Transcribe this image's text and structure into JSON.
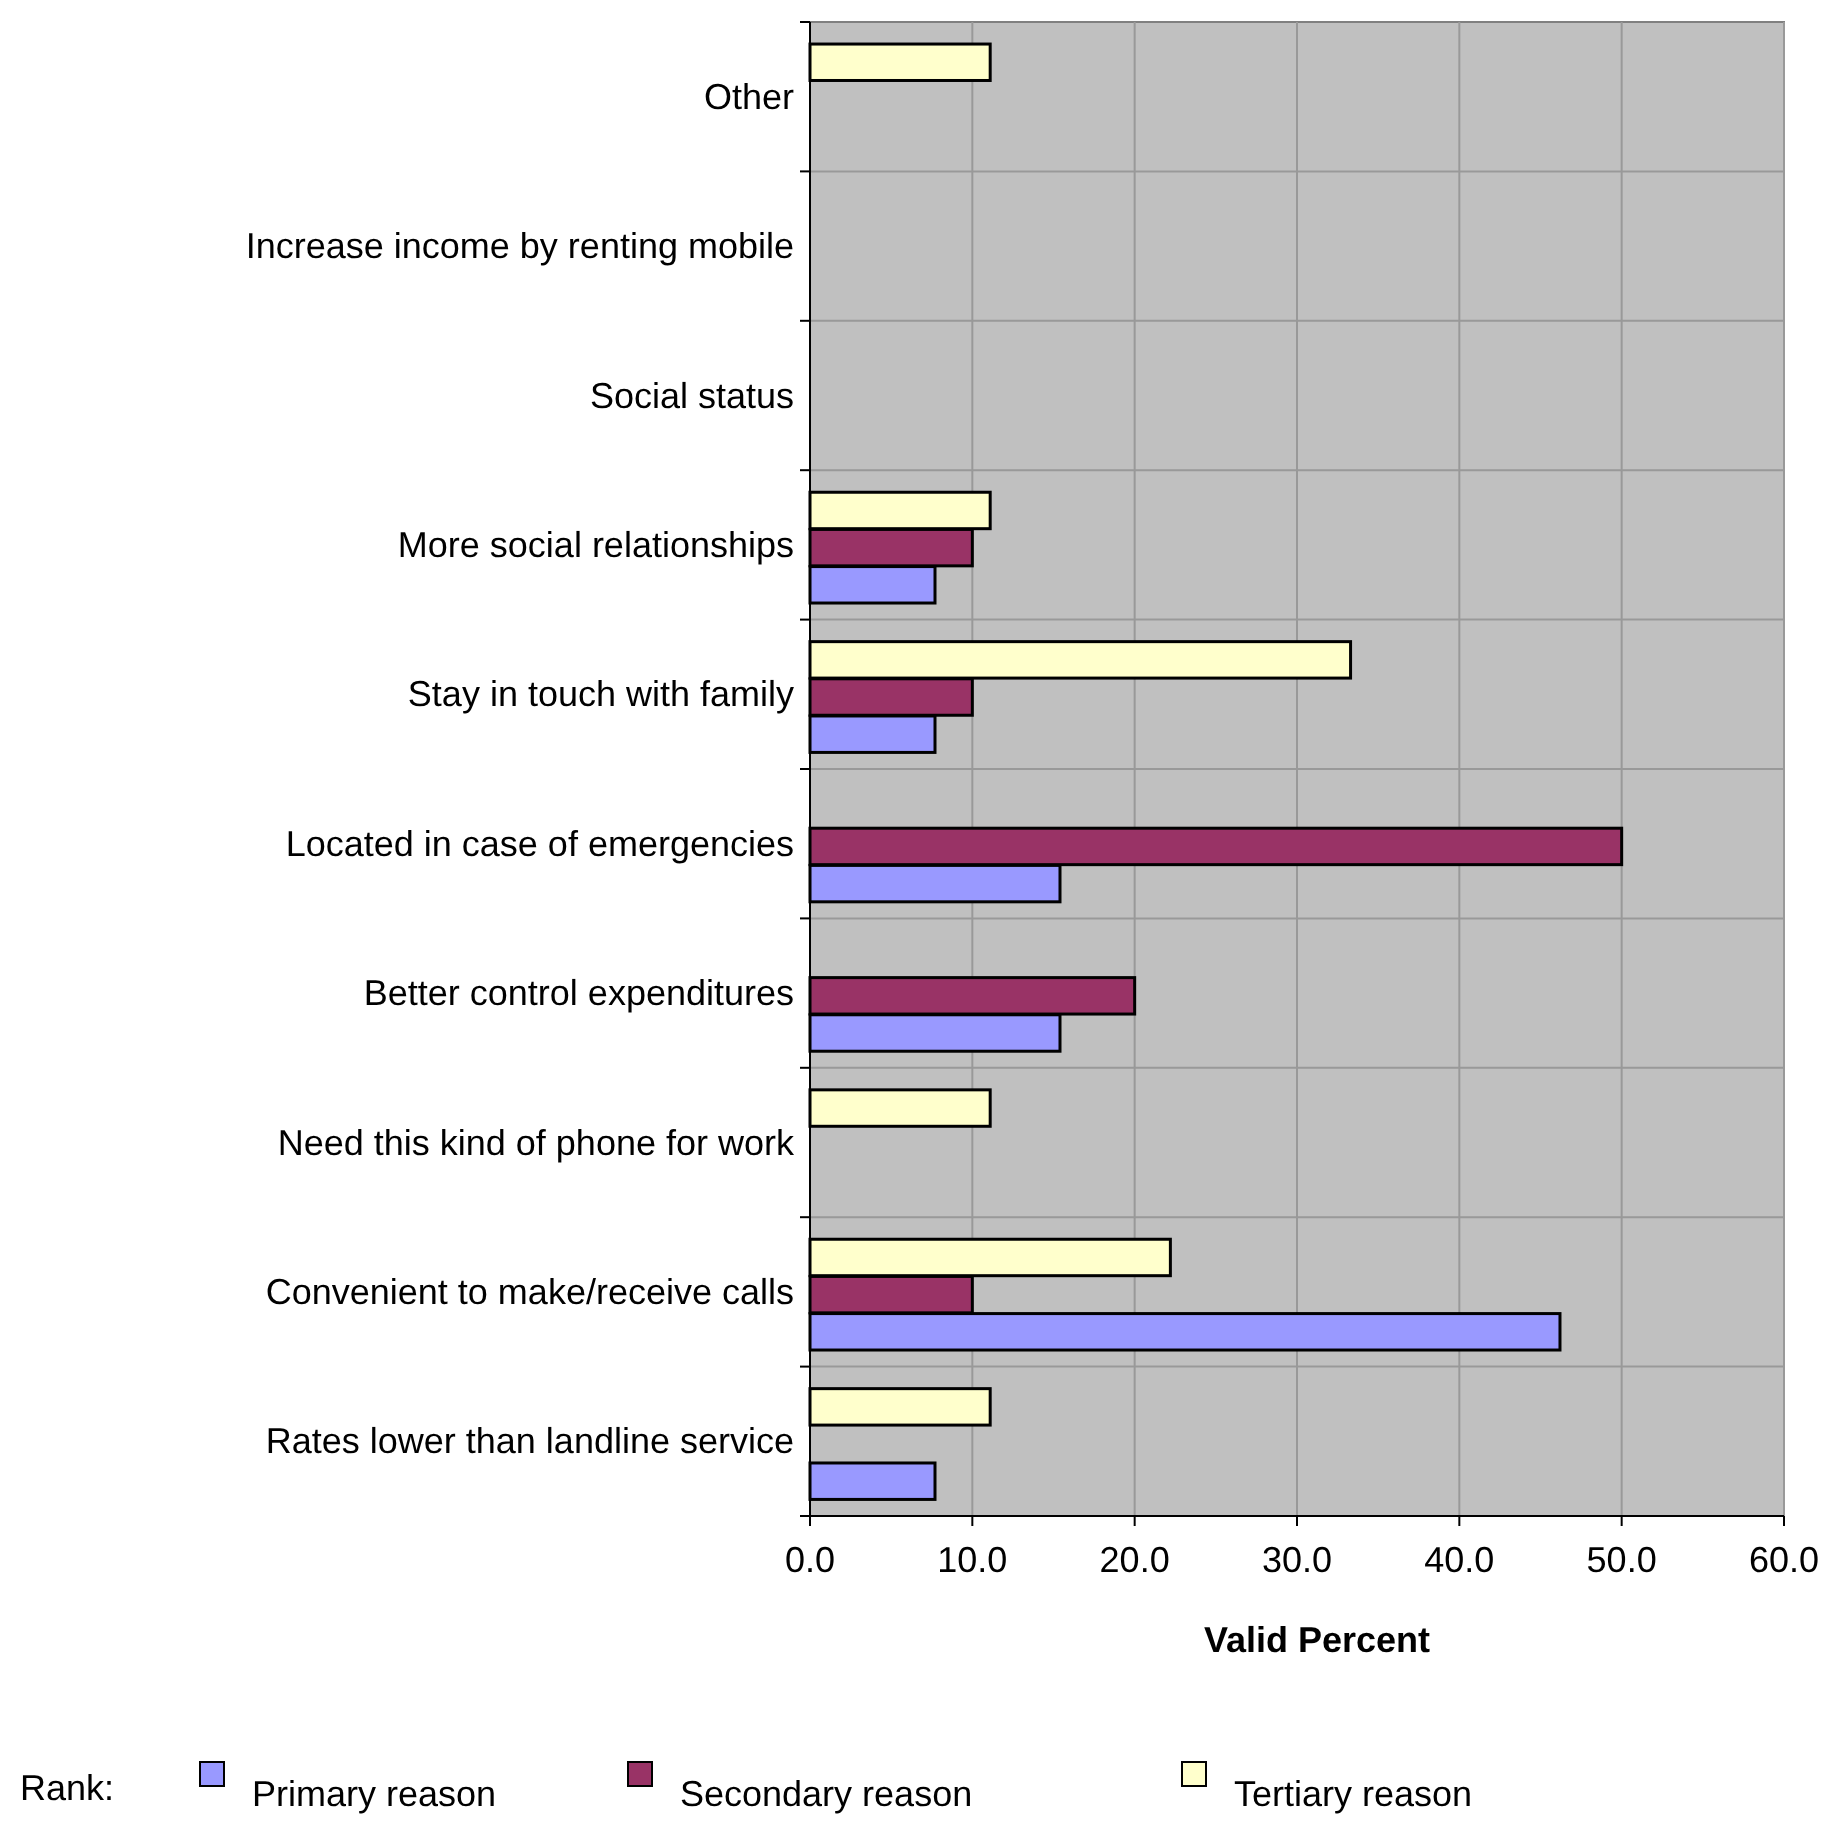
{
  "chart_data": {
    "type": "bar",
    "orientation": "horizontal",
    "xlabel": "Valid Percent",
    "legend_title": "Rank:",
    "categories": [
      "Other",
      "Increase income by renting mobile",
      "Social status",
      "More social relationships",
      "Stay in touch with family",
      "Located in case of emergencies",
      "Better control expenditures",
      "Need this kind of phone for work",
      "Convenient to make/receive calls",
      "Rates lower than landline service"
    ],
    "series": [
      {
        "name": "Primary reason",
        "color": "#9999ff",
        "values": [
          null,
          null,
          null,
          7.7,
          7.7,
          15.4,
          15.4,
          null,
          46.2,
          7.7
        ]
      },
      {
        "name": "Secondary reason",
        "color": "#993366",
        "values": [
          null,
          null,
          null,
          10,
          10,
          50,
          20,
          null,
          10,
          null
        ]
      },
      {
        "name": "Tertiary reason",
        "color": "#ffffcc",
        "values": [
          11.1,
          null,
          null,
          11.1,
          33.3,
          null,
          null,
          11.1,
          22.2,
          11.1
        ]
      }
    ],
    "xlim": [
      0,
      60
    ],
    "xticks": [
      {
        "value": 0,
        "label": "0.0"
      },
      {
        "value": 10,
        "label": "10.0"
      },
      {
        "value": 20,
        "label": "20.0"
      },
      {
        "value": 30,
        "label": "30.0"
      },
      {
        "value": 40,
        "label": "40.0"
      },
      {
        "value": 50,
        "label": "50.0"
      },
      {
        "value": 60,
        "label": "60.0"
      }
    ],
    "grid": true,
    "legend": "bottom"
  }
}
